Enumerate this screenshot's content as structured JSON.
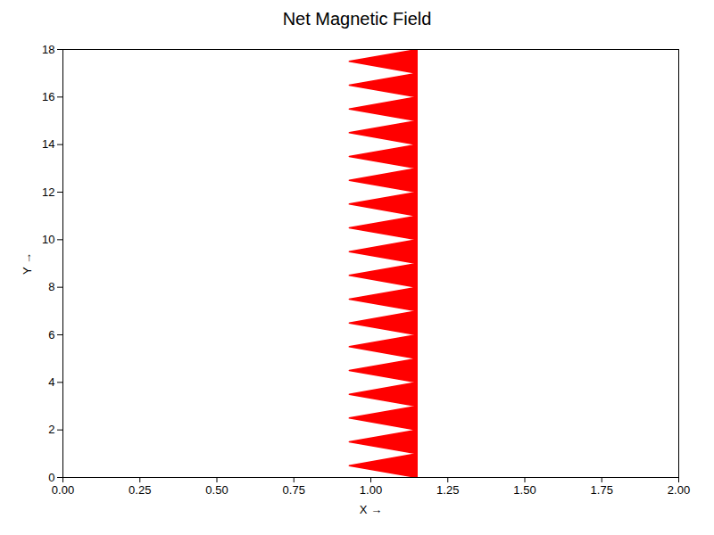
{
  "chart_data": {
    "type": "polygon",
    "title": "Net Magnetic Field",
    "xlabel": "X",
    "ylabel": "Y",
    "x": [
      1.15,
      1.15,
      1.15,
      1.15,
      0.93,
      1.15,
      0.93,
      1.15,
      0.93,
      1.15,
      0.93,
      1.15,
      0.93,
      1.15,
      0.93,
      1.15,
      0.93,
      1.15,
      0.93,
      1.15,
      0.93,
      1.15,
      0.93,
      1.15,
      0.93,
      1.15,
      0.93,
      1.15,
      0.93,
      1.15,
      0.93,
      1.15,
      0.93,
      1.15,
      0.93,
      1.15,
      0.93,
      1.15,
      0.93,
      1.15
    ],
    "y": [
      18,
      0,
      0,
      0,
      0.5,
      1,
      1.5,
      2,
      2.5,
      3,
      3.5,
      4,
      4.5,
      5,
      5.5,
      6,
      6.5,
      7,
      7.5,
      8,
      8.5,
      9,
      9.5,
      10,
      10.5,
      11,
      11.5,
      12,
      12.5,
      13,
      13.5,
      14,
      14.5,
      15,
      15.5,
      16,
      16.5,
      17,
      17.5,
      18
    ],
    "color": "#ff0000",
    "xlim": [
      0.0,
      2.0
    ],
    "xticks": [
      {
        "value": 0.0,
        "label": "0.00"
      },
      0.25,
      {
        "value": 0.5,
        "label": "0.50"
      },
      0.75,
      {
        "value": 1.0,
        "label": "1.00"
      },
      1.25,
      {
        "value": 1.5,
        "label": "1.50"
      },
      1.75,
      {
        "value": 2.0,
        "label": "2.00"
      }
    ],
    "ylim": [
      0,
      18
    ],
    "yticks": [
      0,
      2,
      4,
      6,
      8,
      10,
      12,
      14,
      16,
      18
    ],
    "grid": false
  }
}
